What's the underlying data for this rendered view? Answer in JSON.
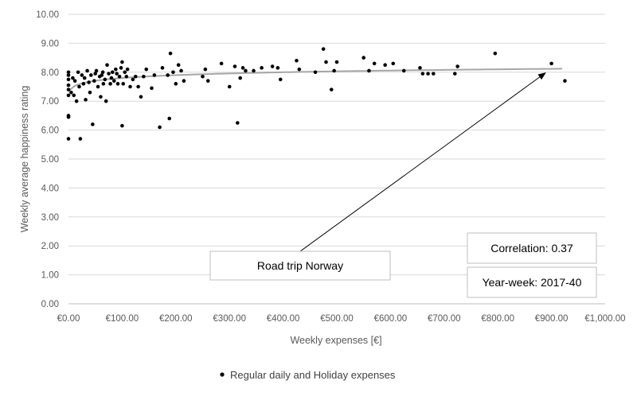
{
  "chart_data": {
    "type": "scatter",
    "title": "",
    "xlabel": "Weekly expenses [€]",
    "ylabel": "Weekly average happiness rating",
    "xlim": [
      0,
      1000
    ],
    "ylim": [
      0,
      10
    ],
    "x_ticks": [
      0,
      100,
      200,
      300,
      400,
      500,
      600,
      700,
      800,
      900,
      1000
    ],
    "x_tick_labels": [
      "€0.00",
      "€100.00",
      "€200.00",
      "€300.00",
      "€400.00",
      "€500.00",
      "€600.00",
      "€700.00",
      "€800.00",
      "€900.00",
      "€1,000.00"
    ],
    "y_ticks": [
      0,
      1,
      2,
      3,
      4,
      5,
      6,
      7,
      8,
      9,
      10
    ],
    "y_tick_labels": [
      "0.00",
      "1.00",
      "2.00",
      "3.00",
      "4.00",
      "5.00",
      "6.00",
      "7.00",
      "8.00",
      "9.00",
      "10.00"
    ],
    "grid": "horizontal",
    "legend": {
      "placement": "bottom-center",
      "entries": [
        "Regular daily and Holiday expenses"
      ]
    },
    "colors": {
      "points": "#000000",
      "trendline": "#a6a6a6",
      "grid": "#d9d9d9",
      "arrow": "#000000"
    },
    "series": [
      {
        "name": "Regular daily and Holiday expenses",
        "points": [
          [
            0,
            5.7
          ],
          [
            0,
            6.45
          ],
          [
            0,
            6.5
          ],
          [
            0,
            7.2
          ],
          [
            0,
            7.4
          ],
          [
            0,
            7.55
          ],
          [
            0,
            7.75
          ],
          [
            0,
            7.9
          ],
          [
            0,
            8.0
          ],
          [
            5,
            7.3
          ],
          [
            8,
            7.8
          ],
          [
            10,
            7.2
          ],
          [
            12,
            7.7
          ],
          [
            15,
            7.0
          ],
          [
            18,
            8.0
          ],
          [
            20,
            7.5
          ],
          [
            22,
            5.7
          ],
          [
            25,
            7.9
          ],
          [
            28,
            7.6
          ],
          [
            30,
            7.8
          ],
          [
            32,
            7.05
          ],
          [
            35,
            8.05
          ],
          [
            38,
            7.65
          ],
          [
            40,
            7.3
          ],
          [
            42,
            7.9
          ],
          [
            45,
            6.2
          ],
          [
            48,
            7.7
          ],
          [
            50,
            7.95
          ],
          [
            52,
            8.05
          ],
          [
            55,
            7.5
          ],
          [
            58,
            7.85
          ],
          [
            60,
            7.15
          ],
          [
            62,
            7.9
          ],
          [
            64,
            8.0
          ],
          [
            65,
            7.6
          ],
          [
            68,
            7.75
          ],
          [
            70,
            7.0
          ],
          [
            72,
            8.25
          ],
          [
            75,
            7.95
          ],
          [
            78,
            7.6
          ],
          [
            80,
            7.8
          ],
          [
            82,
            8.0
          ],
          [
            85,
            7.7
          ],
          [
            88,
            8.1
          ],
          [
            90,
            7.95
          ],
          [
            92,
            7.6
          ],
          [
            95,
            7.85
          ],
          [
            98,
            8.15
          ],
          [
            100,
            6.15
          ],
          [
            100,
            8.35
          ],
          [
            102,
            7.6
          ],
          [
            105,
            8.0
          ],
          [
            108,
            7.85
          ],
          [
            110,
            8.1
          ],
          [
            115,
            7.5
          ],
          [
            120,
            7.75
          ],
          [
            125,
            7.85
          ],
          [
            130,
            7.5
          ],
          [
            135,
            7.15
          ],
          [
            140,
            7.85
          ],
          [
            145,
            8.1
          ],
          [
            155,
            7.45
          ],
          [
            160,
            7.9
          ],
          [
            170,
            6.1
          ],
          [
            175,
            8.15
          ],
          [
            185,
            7.9
          ],
          [
            188,
            6.4
          ],
          [
            190,
            8.65
          ],
          [
            195,
            8.0
          ],
          [
            200,
            7.6
          ],
          [
            205,
            8.25
          ],
          [
            210,
            8.05
          ],
          [
            215,
            7.7
          ],
          [
            250,
            7.85
          ],
          [
            255,
            8.1
          ],
          [
            260,
            7.7
          ],
          [
            285,
            8.3
          ],
          [
            300,
            7.5
          ],
          [
            310,
            8.2
          ],
          [
            315,
            6.25
          ],
          [
            320,
            7.8
          ],
          [
            325,
            8.15
          ],
          [
            330,
            8.05
          ],
          [
            345,
            8.05
          ],
          [
            360,
            8.15
          ],
          [
            380,
            8.2
          ],
          [
            390,
            8.15
          ],
          [
            395,
            7.75
          ],
          [
            425,
            8.4
          ],
          [
            430,
            8.1
          ],
          [
            460,
            8.0
          ],
          [
            475,
            8.8
          ],
          [
            480,
            8.35
          ],
          [
            490,
            7.4
          ],
          [
            495,
            8.05
          ],
          [
            500,
            8.35
          ],
          [
            550,
            8.5
          ],
          [
            560,
            8.05
          ],
          [
            570,
            8.3
          ],
          [
            590,
            8.25
          ],
          [
            605,
            8.3
          ],
          [
            625,
            8.05
          ],
          [
            655,
            8.15
          ],
          [
            660,
            7.95
          ],
          [
            670,
            7.95
          ],
          [
            680,
            7.95
          ],
          [
            720,
            7.95
          ],
          [
            725,
            8.2
          ],
          [
            795,
            8.65
          ],
          [
            900,
            8.3
          ],
          [
            925,
            7.7
          ]
        ]
      }
    ],
    "trendline": {
      "type": "logarithmic",
      "x_start": 0,
      "x_end": 920,
      "y_start": 7.35,
      "y_end": 8.12
    },
    "annotations": [
      {
        "text": "Road trip Norway",
        "arrow_to": [
          890,
          8.05
        ]
      },
      {
        "text": "Correlation: 0.37"
      },
      {
        "text": "Year-week: 2017-40"
      }
    ]
  }
}
